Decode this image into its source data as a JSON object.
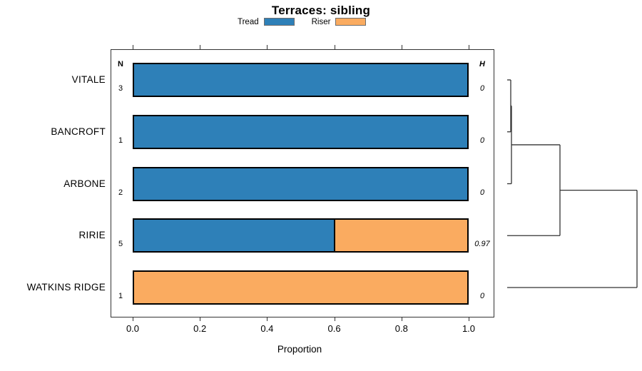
{
  "title": "Terraces: sibling",
  "legend": {
    "items": [
      {
        "label": "Tread",
        "color": "#2E80B8"
      },
      {
        "label": "Riser",
        "color": "#FAAB60"
      }
    ]
  },
  "chart_data": {
    "type": "bar",
    "orientation": "horizontal",
    "stacked": true,
    "title": "Terraces: sibling",
    "xlabel": "Proportion",
    "xlim": [
      0,
      1
    ],
    "grid": false,
    "legend_position": "top-center",
    "categories": [
      "VITALE",
      "BANCROFT",
      "ARBONE",
      "RIRIE",
      "WATKINS RIDGE"
    ],
    "series": [
      {
        "name": "Tread",
        "color": "#2E80B8",
        "values": [
          1,
          1,
          1,
          0.6,
          0
        ]
      },
      {
        "name": "Riser",
        "color": "#FAAB60",
        "values": [
          0,
          0,
          0,
          0.4,
          1
        ]
      }
    ],
    "n_header": "N",
    "n_values": [
      "3",
      "1",
      "2",
      "5",
      "1"
    ],
    "h_header": "H",
    "h_values": [
      "0",
      "0",
      "0",
      "0.97",
      "0"
    ],
    "xticks": [
      {
        "value": 0.0,
        "label": "0.0"
      },
      {
        "value": 0.2,
        "label": "0.2"
      },
      {
        "value": 0.4,
        "label": "0.4"
      },
      {
        "value": 0.6,
        "label": "0.6"
      },
      {
        "value": 0.8,
        "label": "0.8"
      },
      {
        "value": 1.0,
        "label": "1.0"
      }
    ],
    "dendrogram": {
      "description": "row-cluster tree drawn right of plot; merges ordered bottom-up",
      "line_color": "#333333",
      "baseline_x": 711,
      "merges": [
        {
          "children": [
            "L0",
            "L1"
          ],
          "x": 716
        },
        {
          "children": [
            "N0",
            "L2"
          ],
          "x": 717
        },
        {
          "children": [
            "N1",
            "L3"
          ],
          "x": 785
        },
        {
          "children": [
            "N2",
            "L4"
          ],
          "x": 893
        }
      ]
    }
  }
}
